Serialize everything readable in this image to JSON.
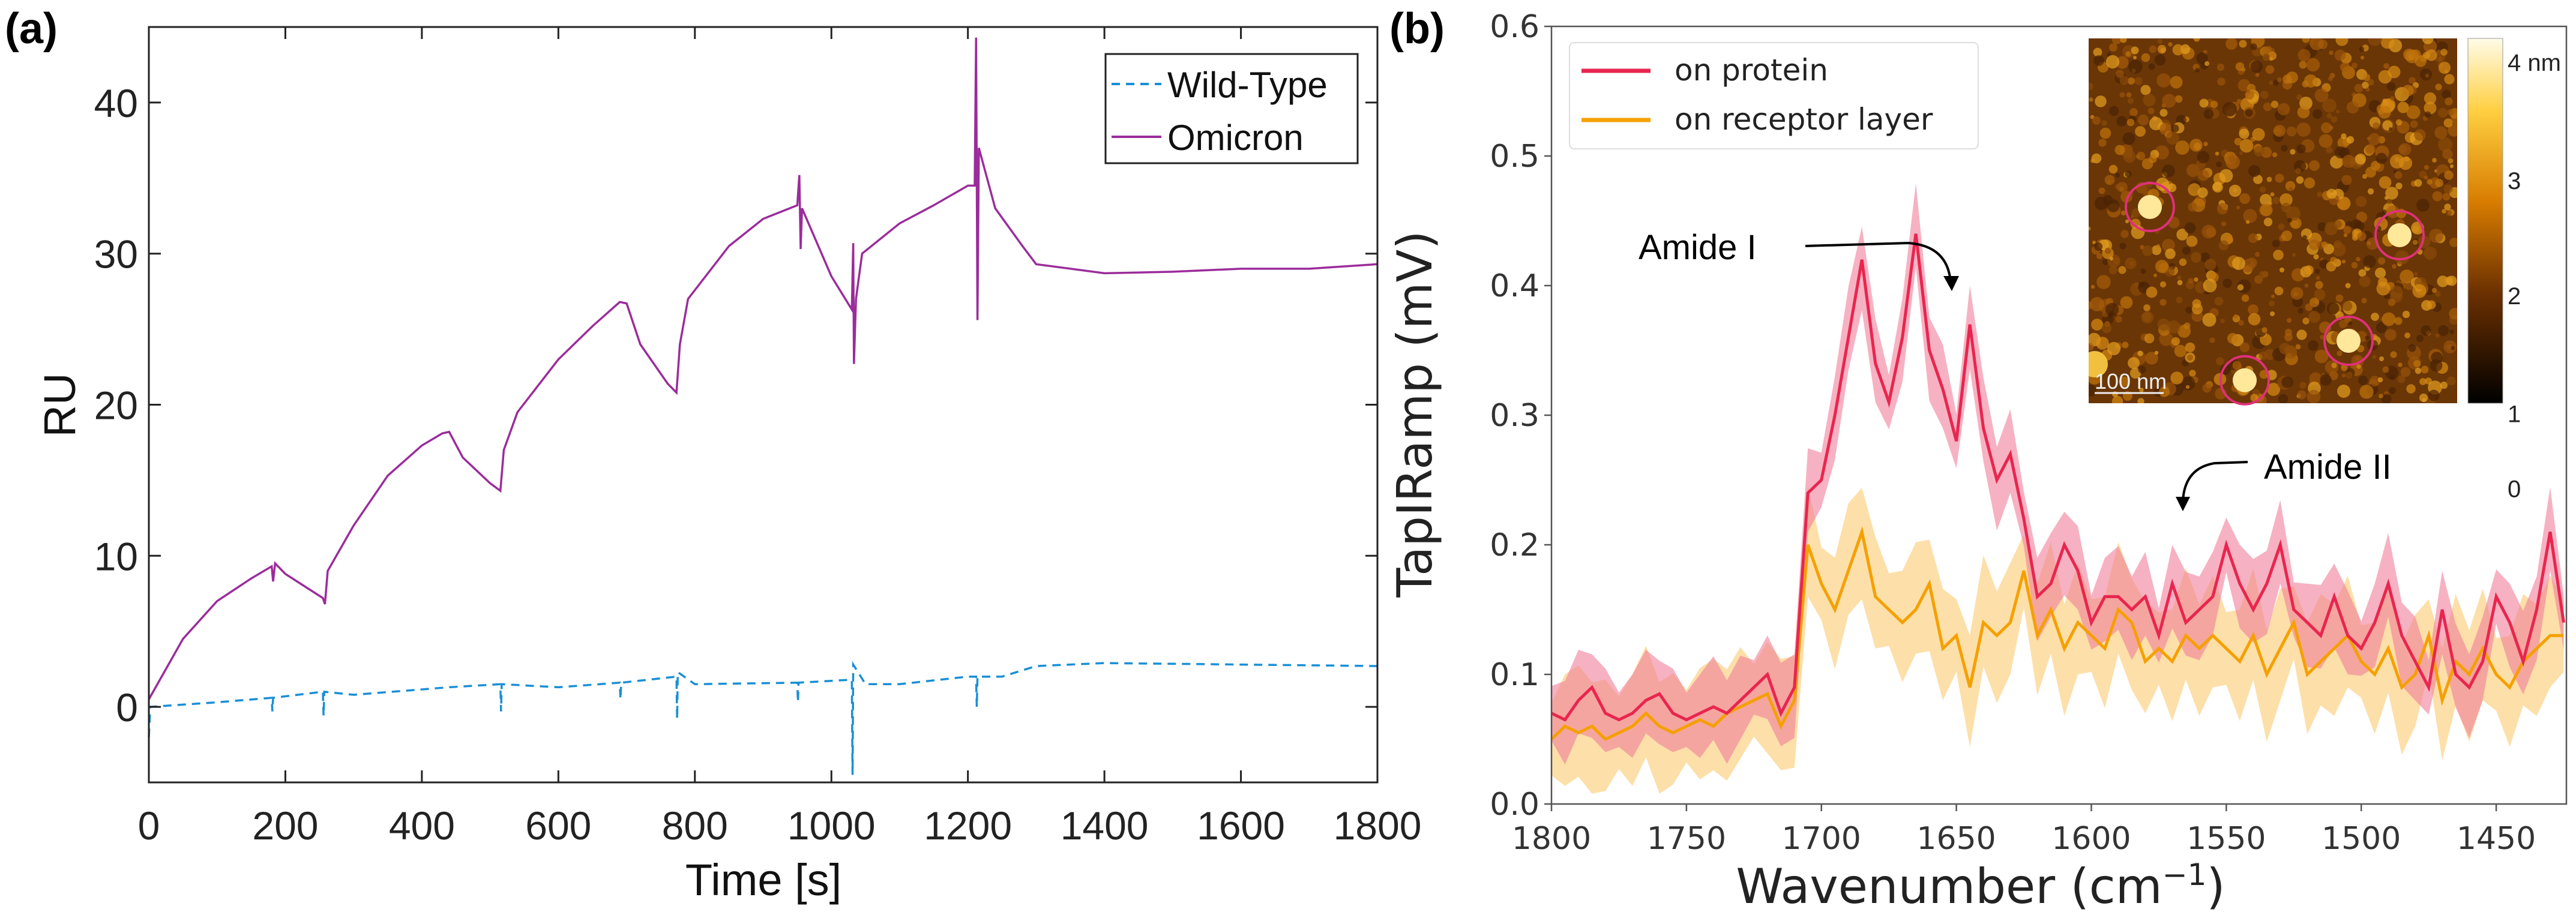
{
  "chart_data": [
    {
      "panel_label": "(a)",
      "type": "line",
      "title": "",
      "xlabel": "Time [s]",
      "ylabel": "RU",
      "xlim": [
        0,
        1800
      ],
      "ylim": [
        -5,
        45
      ],
      "xticks": [
        0,
        200,
        400,
        600,
        800,
        1000,
        1200,
        1400,
        1600,
        1800
      ],
      "yticks": [
        0,
        10,
        20,
        30,
        40
      ],
      "grid": false,
      "legend_position": "top-right",
      "series": [
        {
          "name": "Wild-Type",
          "color": "#1a8fd6",
          "style": "dashed",
          "x": [
            0,
            2,
            100,
            180,
            181,
            182,
            255,
            256,
            257,
            300,
            440,
            515,
            516,
            517,
            600,
            690,
            691,
            692,
            773,
            774,
            775,
            800,
            950,
            951,
            952,
            1030,
            1031,
            1032,
            1050,
            1100,
            1200,
            1212,
            1213,
            1214,
            1250,
            1300,
            1400,
            1600,
            1800
          ],
          "y": [
            -2,
            0,
            0.3,
            0.6,
            -0.3,
            0.6,
            1,
            -0.6,
            1,
            0.8,
            1.3,
            1.5,
            -0.3,
            1.5,
            1.3,
            1.6,
            0.5,
            1.6,
            2,
            -0.8,
            2.3,
            1.5,
            1.6,
            0.3,
            1.6,
            1.8,
            -4.5,
            2.8,
            1.5,
            1.5,
            2,
            2,
            0,
            2,
            2,
            2.7,
            2.9,
            2.8,
            2.7
          ]
        },
        {
          "name": "Omicron",
          "color": "#9b2c9b",
          "style": "solid",
          "x": [
            0,
            50,
            100,
            150,
            180,
            182,
            185,
            200,
            255,
            258,
            262,
            300,
            350,
            400,
            430,
            440,
            460,
            500,
            515,
            520,
            540,
            600,
            650,
            690,
            700,
            720,
            760,
            773,
            778,
            790,
            850,
            900,
            950,
            953,
            955,
            957,
            1000,
            1030,
            1032,
            1033,
            1036,
            1045,
            1100,
            1150,
            1200,
            1210,
            1212,
            1214,
            1216,
            1240,
            1280,
            1300,
            1400,
            1500,
            1600,
            1700,
            1800
          ],
          "y": [
            0.5,
            4.5,
            7,
            8.5,
            9.3,
            8.3,
            9.5,
            8.8,
            7.2,
            6.8,
            9,
            12,
            15.3,
            17.3,
            18.1,
            18.2,
            16.5,
            14.8,
            14.3,
            17,
            19.5,
            23,
            25.2,
            26.8,
            26.7,
            24,
            21.4,
            20.8,
            24,
            27,
            30.5,
            32.3,
            33.2,
            35.2,
            30.3,
            33,
            28.5,
            26.3,
            30.7,
            22.7,
            27,
            30,
            32,
            33.2,
            34.5,
            34.5,
            44.3,
            25.6,
            37,
            33,
            30.5,
            29.3,
            28.7,
            28.8,
            29,
            29,
            29.3
          ]
        }
      ]
    },
    {
      "panel_label": "(b)",
      "type": "line",
      "title": "",
      "xlabel": "Wavenumber (cm",
      "xlabel_sup": "−1",
      "xlabel_end": ")",
      "ylabel": "TapIRamp (mV)",
      "xlim": [
        1800,
        1424
      ],
      "ylim": [
        0,
        0.6
      ],
      "xticks": [
        1800,
        1750,
        1700,
        1650,
        1600,
        1550,
        1500,
        1450
      ],
      "yticks": [
        "0.0",
        "0.1",
        "0.2",
        "0.3",
        "0.4",
        "0.5",
        "0.6"
      ],
      "grid": false,
      "legend_position": "top-left",
      "x_start": 1800,
      "x_step": -5,
      "series": [
        {
          "name": "on protein",
          "color": "#e8264f",
          "band_color": "#f07f9a",
          "band_halfwidth": 0.03,
          "y": [
            0.07,
            0.065,
            0.08,
            0.09,
            0.07,
            0.065,
            0.07,
            0.08,
            0.085,
            0.07,
            0.065,
            0.07,
            0.075,
            0.07,
            0.08,
            0.09,
            0.1,
            0.07,
            0.09,
            0.24,
            0.25,
            0.3,
            0.36,
            0.42,
            0.34,
            0.31,
            0.36,
            0.44,
            0.35,
            0.32,
            0.28,
            0.37,
            0.29,
            0.25,
            0.27,
            0.22,
            0.16,
            0.17,
            0.2,
            0.18,
            0.14,
            0.16,
            0.16,
            0.15,
            0.16,
            0.13,
            0.17,
            0.14,
            0.15,
            0.16,
            0.2,
            0.17,
            0.15,
            0.17,
            0.2,
            0.15,
            0.14,
            0.13,
            0.16,
            0.13,
            0.12,
            0.14,
            0.17,
            0.13,
            0.11,
            0.09,
            0.15,
            0.1,
            0.09,
            0.11,
            0.16,
            0.14,
            0.11,
            0.15,
            0.21,
            0.14
          ]
        },
        {
          "name": "on receptor layer",
          "color": "#f5a000",
          "band_color": "#fcc970",
          "band_halfwidth": 0.04,
          "y": [
            0.05,
            0.06,
            0.055,
            0.06,
            0.05,
            0.055,
            0.06,
            0.07,
            0.06,
            0.055,
            0.06,
            0.065,
            0.06,
            0.07,
            0.075,
            0.08,
            0.085,
            0.06,
            0.08,
            0.2,
            0.17,
            0.15,
            0.18,
            0.21,
            0.16,
            0.15,
            0.14,
            0.15,
            0.17,
            0.12,
            0.13,
            0.09,
            0.14,
            0.13,
            0.14,
            0.18,
            0.13,
            0.15,
            0.12,
            0.14,
            0.13,
            0.12,
            0.15,
            0.14,
            0.11,
            0.12,
            0.11,
            0.13,
            0.12,
            0.13,
            0.12,
            0.11,
            0.13,
            0.1,
            0.12,
            0.14,
            0.1,
            0.11,
            0.12,
            0.13,
            0.11,
            0.1,
            0.12,
            0.09,
            0.1,
            0.13,
            0.08,
            0.11,
            0.1,
            0.12,
            0.1,
            0.09,
            0.11,
            0.12,
            0.13,
            0.13
          ]
        }
      ],
      "annotations": [
        "Amide I",
        "Amide II"
      ],
      "inset": {
        "scale_bar": "100 nm",
        "colorbar_ticks": [
          "4 nm",
          "3",
          "2",
          "1",
          "0"
        ],
        "circle_color": "#e0307a"
      }
    }
  ]
}
